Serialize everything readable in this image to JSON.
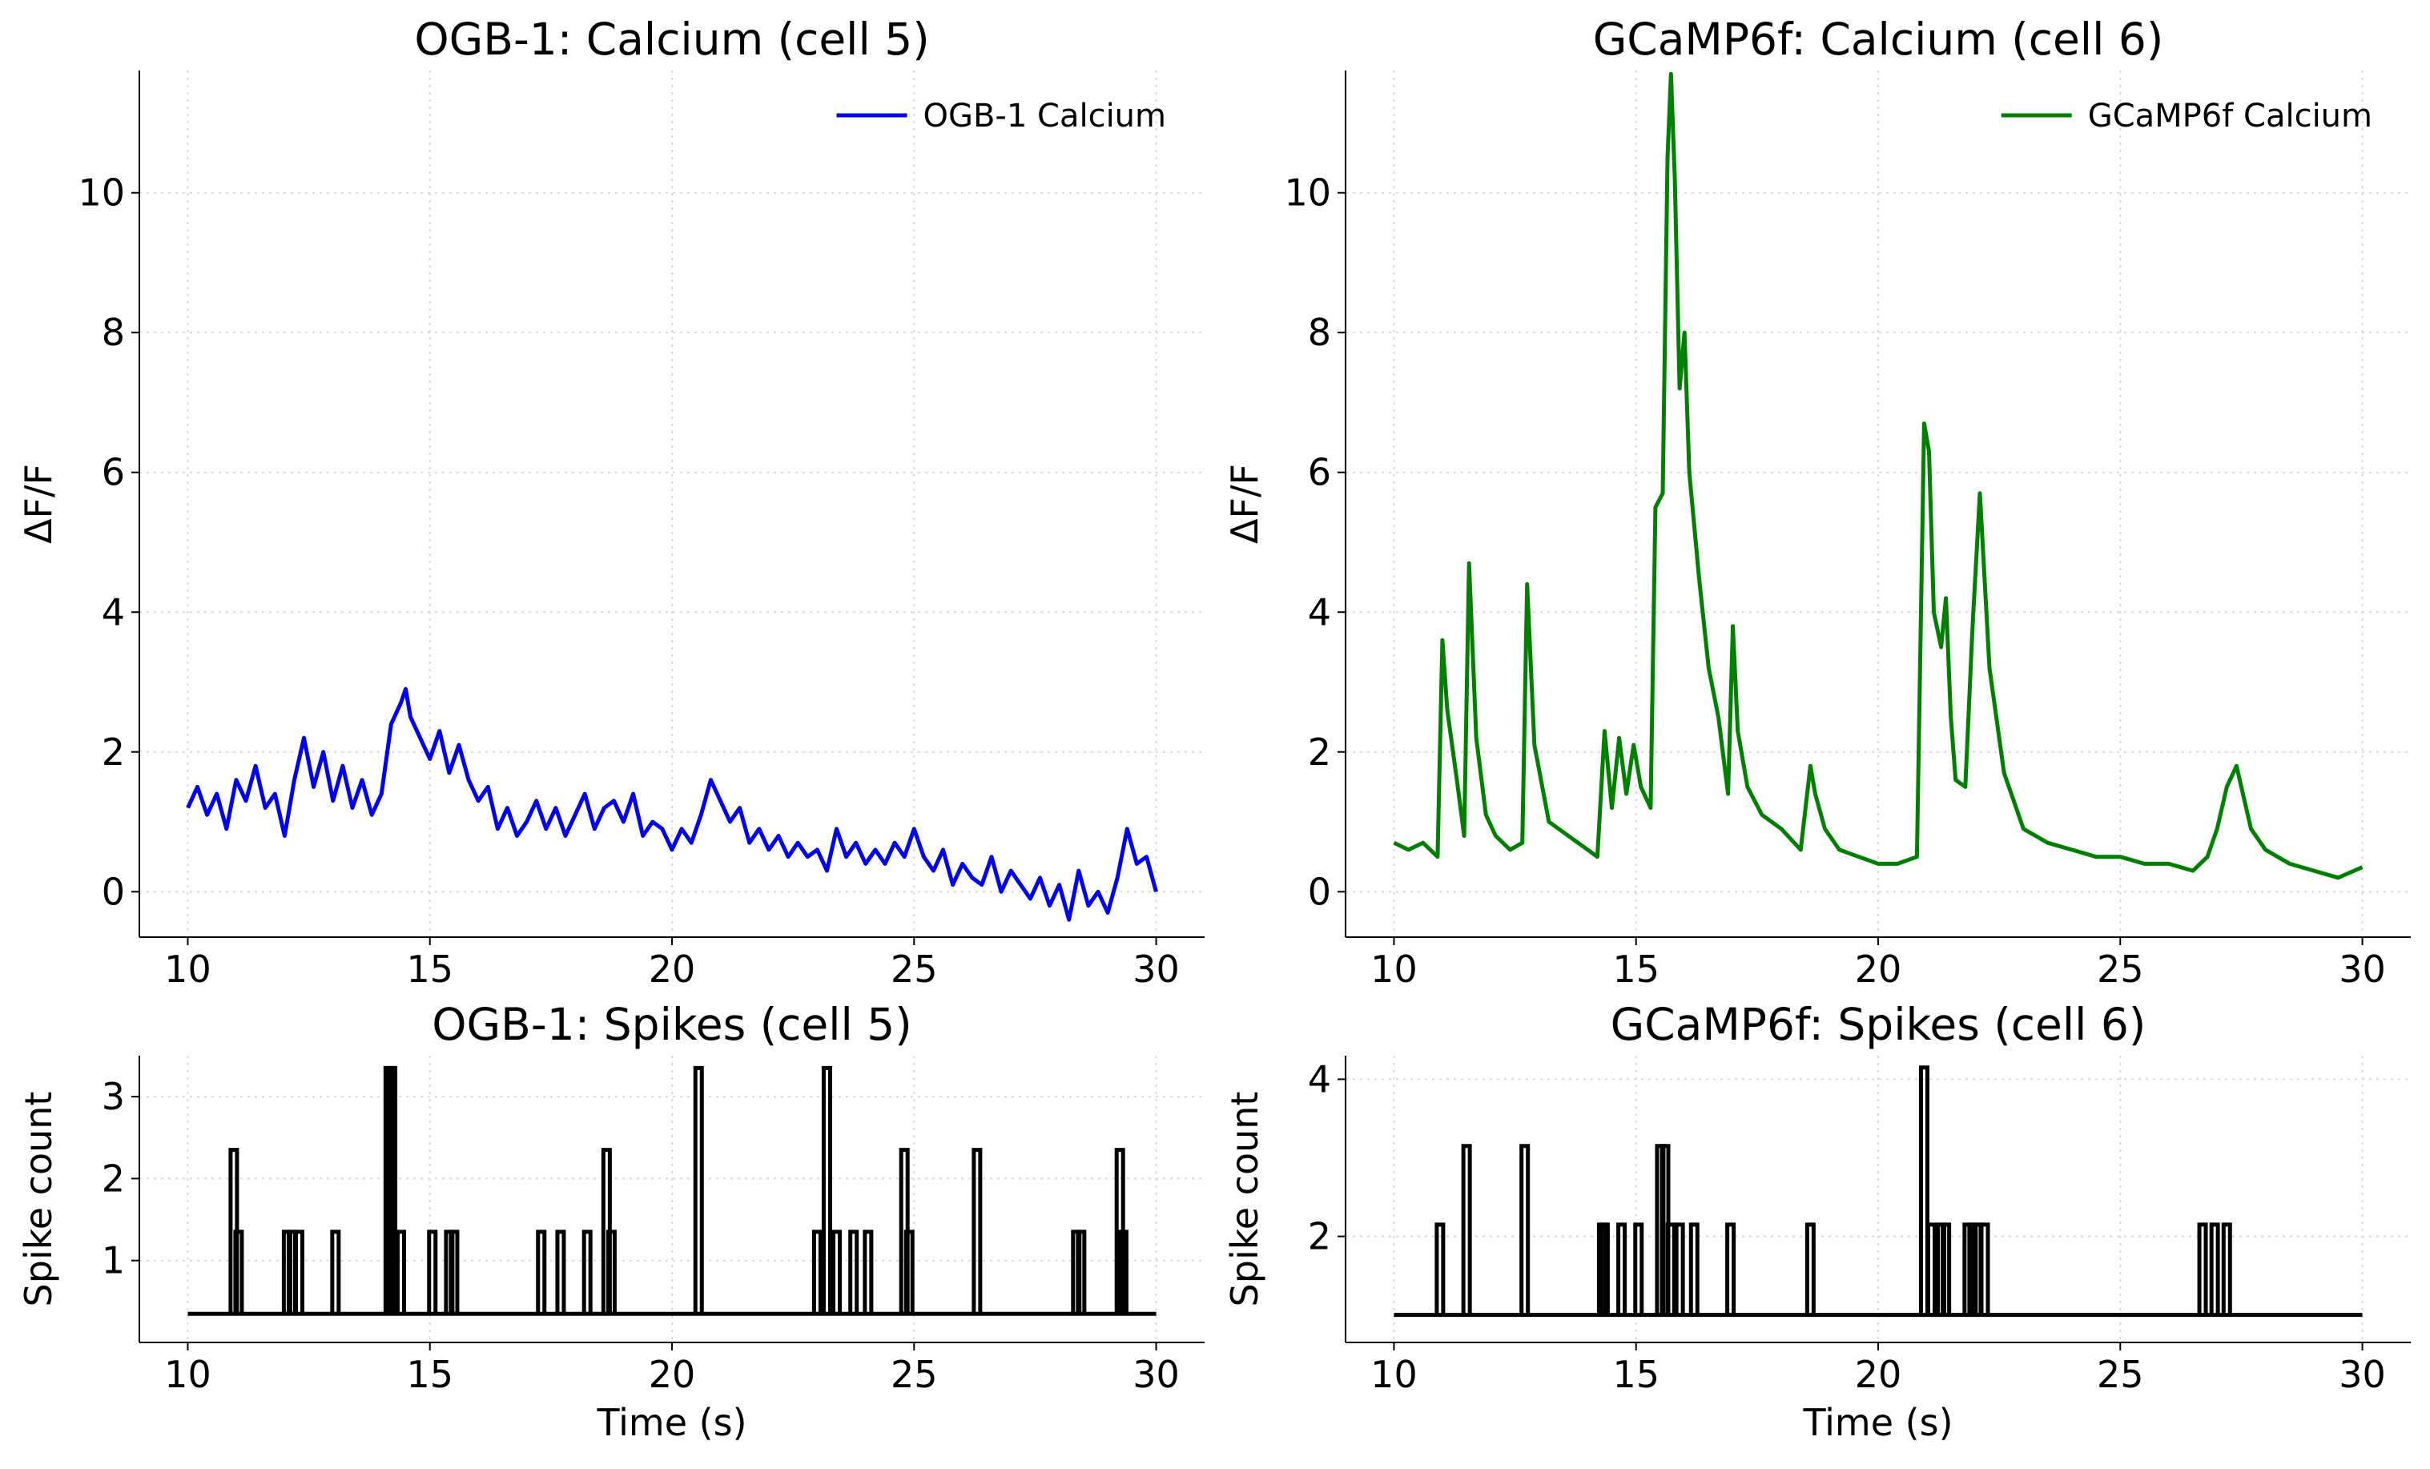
{
  "chart_data": [
    {
      "id": "ogb_calcium",
      "type": "line",
      "title": "OGB-1: Calcium (cell 5)",
      "xlabel": "",
      "ylabel": "ΔF/F",
      "xlim": [
        9,
        31
      ],
      "ylim": [
        -0.65,
        11.75
      ],
      "xticks": [
        10,
        15,
        20,
        25,
        30
      ],
      "yticks": [
        0,
        2,
        4,
        6,
        8,
        10
      ],
      "grid": true,
      "legend": "top-right",
      "color": "#0000ee",
      "series": [
        {
          "name": "OGB-1 Calcium",
          "x": [
            10.0,
            10.2,
            10.4,
            10.6,
            10.8,
            11.0,
            11.2,
            11.4,
            11.6,
            11.8,
            12.0,
            12.2,
            12.4,
            12.6,
            12.8,
            13.0,
            13.2,
            13.4,
            13.6,
            13.8,
            14.0,
            14.2,
            14.4,
            14.5,
            14.6,
            14.8,
            15.0,
            15.2,
            15.4,
            15.6,
            15.8,
            16.0,
            16.2,
            16.4,
            16.6,
            16.8,
            17.0,
            17.2,
            17.4,
            17.6,
            17.8,
            18.0,
            18.2,
            18.4,
            18.6,
            18.8,
            19.0,
            19.2,
            19.4,
            19.6,
            19.8,
            20.0,
            20.2,
            20.4,
            20.6,
            20.8,
            21.0,
            21.2,
            21.4,
            21.6,
            21.8,
            22.0,
            22.2,
            22.4,
            22.6,
            22.8,
            23.0,
            23.2,
            23.4,
            23.6,
            23.8,
            24.0,
            24.2,
            24.4,
            24.6,
            24.8,
            25.0,
            25.2,
            25.4,
            25.6,
            25.8,
            26.0,
            26.2,
            26.4,
            26.6,
            26.8,
            27.0,
            27.2,
            27.4,
            27.6,
            27.8,
            28.0,
            28.2,
            28.4,
            28.6,
            28.8,
            29.0,
            29.2,
            29.4,
            29.6,
            29.8,
            30.0
          ],
          "y": [
            1.2,
            1.5,
            1.1,
            1.4,
            0.9,
            1.6,
            1.3,
            1.8,
            1.2,
            1.4,
            0.8,
            1.6,
            2.2,
            1.5,
            2.0,
            1.3,
            1.8,
            1.2,
            1.6,
            1.1,
            1.4,
            2.4,
            2.7,
            2.9,
            2.5,
            2.2,
            1.9,
            2.3,
            1.7,
            2.1,
            1.6,
            1.3,
            1.5,
            0.9,
            1.2,
            0.8,
            1.0,
            1.3,
            0.9,
            1.2,
            0.8,
            1.1,
            1.4,
            0.9,
            1.2,
            1.3,
            1.0,
            1.4,
            0.8,
            1.0,
            0.9,
            0.6,
            0.9,
            0.7,
            1.1,
            1.6,
            1.3,
            1.0,
            1.2,
            0.7,
            0.9,
            0.6,
            0.8,
            0.5,
            0.7,
            0.5,
            0.6,
            0.3,
            0.9,
            0.5,
            0.7,
            0.4,
            0.6,
            0.4,
            0.7,
            0.5,
            0.9,
            0.5,
            0.3,
            0.6,
            0.1,
            0.4,
            0.2,
            0.1,
            0.5,
            0.0,
            0.3,
            0.1,
            -0.1,
            0.2,
            -0.2,
            0.1,
            -0.4,
            0.3,
            -0.2,
            0.0,
            -0.3,
            0.2,
            0.9,
            0.4,
            0.5,
            0.0
          ]
        }
      ]
    },
    {
      "id": "gcamp_calcium",
      "type": "line",
      "title": "GCaMP6f: Calcium (cell 6)",
      "xlabel": "",
      "ylabel": "ΔF/F",
      "xlim": [
        9,
        31
      ],
      "ylim": [
        -0.65,
        11.75
      ],
      "xticks": [
        10,
        15,
        20,
        25,
        30
      ],
      "yticks": [
        0,
        2,
        4,
        6,
        8,
        10
      ],
      "grid": true,
      "legend": "top-right",
      "color": "#008000",
      "series": [
        {
          "name": "GCaMP6f Calcium",
          "x": [
            10.0,
            10.3,
            10.6,
            10.9,
            11.0,
            11.1,
            11.3,
            11.45,
            11.55,
            11.7,
            11.9,
            12.1,
            12.4,
            12.65,
            12.75,
            12.9,
            13.2,
            13.6,
            14.0,
            14.2,
            14.35,
            14.5,
            14.65,
            14.8,
            14.95,
            15.1,
            15.3,
            15.4,
            15.55,
            15.65,
            15.72,
            15.8,
            15.9,
            16.0,
            16.1,
            16.3,
            16.5,
            16.7,
            16.9,
            17.0,
            17.1,
            17.3,
            17.6,
            18.0,
            18.4,
            18.6,
            18.7,
            18.9,
            19.2,
            19.6,
            20.0,
            20.4,
            20.8,
            20.95,
            21.05,
            21.15,
            21.3,
            21.4,
            21.5,
            21.6,
            21.8,
            21.95,
            22.1,
            22.3,
            22.6,
            23.0,
            23.5,
            24.0,
            24.5,
            25.0,
            25.5,
            26.0,
            26.5,
            26.8,
            27.0,
            27.2,
            27.4,
            27.7,
            28.0,
            28.5,
            29.0,
            29.5,
            30.0
          ],
          "y": [
            0.7,
            0.6,
            0.7,
            0.5,
            3.6,
            2.6,
            1.6,
            0.8,
            4.7,
            2.2,
            1.1,
            0.8,
            0.6,
            0.7,
            4.4,
            2.1,
            1.0,
            0.8,
            0.6,
            0.5,
            2.3,
            1.2,
            2.2,
            1.4,
            2.1,
            1.5,
            1.2,
            5.5,
            5.7,
            10.5,
            11.7,
            10.2,
            7.2,
            8.0,
            6.0,
            4.5,
            3.2,
            2.5,
            1.4,
            3.8,
            2.3,
            1.5,
            1.1,
            0.9,
            0.6,
            1.8,
            1.4,
            0.9,
            0.6,
            0.5,
            0.4,
            0.4,
            0.5,
            6.7,
            6.3,
            4.0,
            3.5,
            4.2,
            2.5,
            1.6,
            1.5,
            3.8,
            5.7,
            3.2,
            1.7,
            0.9,
            0.7,
            0.6,
            0.5,
            0.5,
            0.4,
            0.4,
            0.3,
            0.5,
            0.9,
            1.5,
            1.8,
            0.9,
            0.6,
            0.4,
            0.3,
            0.2,
            0.35
          ]
        }
      ]
    },
    {
      "id": "ogb_spikes",
      "type": "line",
      "title": "OGB-1: Spikes (cell 5)",
      "xlabel": "Time (s)",
      "ylabel": "Spike count",
      "xlim": [
        9,
        31
      ],
      "ylim": [
        0,
        3.5
      ],
      "xticks": [
        10,
        15,
        20,
        25,
        30
      ],
      "yticks": [
        1,
        2,
        3
      ],
      "grid": true,
      "color": "#000000",
      "series": [
        {
          "x": [
            10.95,
            11.05,
            12.05,
            12.15,
            12.3,
            13.05,
            14.15,
            14.22,
            14.4,
            15.05,
            15.4,
            15.5,
            17.3,
            17.7,
            18.25,
            18.65,
            18.75,
            20.55,
            23.0,
            23.2,
            23.4,
            23.75,
            24.05,
            24.8,
            24.9,
            26.3,
            28.35,
            28.45,
            29.25,
            29.32
          ],
          "values": [
            2,
            1,
            1,
            1,
            1,
            1,
            3,
            3,
            1,
            1,
            1,
            1,
            1,
            1,
            1,
            2,
            1,
            3,
            1,
            3,
            1,
            1,
            1,
            2,
            1,
            2,
            1,
            1,
            2,
            1
          ]
        }
      ]
    },
    {
      "id": "gcamp_spikes",
      "type": "line",
      "title": "GCaMP6f: Spikes (cell 6)",
      "xlabel": "Time (s)",
      "ylabel": "Spike count",
      "xlim": [
        9,
        31
      ],
      "ylim": [
        0.65,
        4.3
      ],
      "xticks": [
        10,
        15,
        20,
        25,
        30
      ],
      "yticks": [
        2,
        4
      ],
      "grid": true,
      "color": "#000000",
      "series": [
        {
          "x": [
            10.95,
            11.5,
            12.7,
            14.3,
            14.35,
            14.7,
            15.05,
            15.5,
            15.6,
            15.72,
            15.9,
            16.2,
            16.95,
            18.6,
            20.95,
            21.1,
            21.3,
            21.4,
            21.85,
            21.95,
            22.05,
            22.2,
            26.7,
            26.95,
            27.2
          ],
          "values": [
            2,
            3,
            3,
            2,
            2,
            2,
            2,
            3,
            3,
            2,
            2,
            2,
            2,
            2,
            4,
            2,
            2,
            2,
            2,
            2,
            2,
            2,
            2,
            2,
            2
          ]
        }
      ]
    }
  ]
}
